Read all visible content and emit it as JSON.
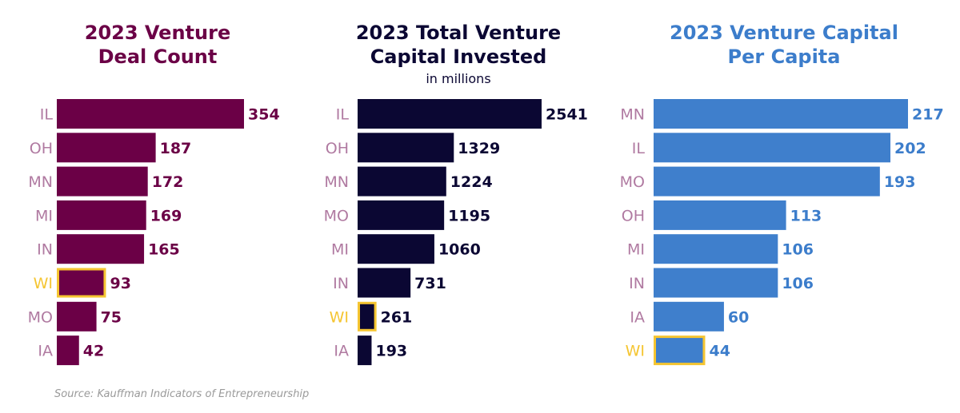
{
  "chart_data": [
    {
      "type": "bar",
      "orientation": "horizontal",
      "title_lines": [
        "2023 Venture",
        "Deal Count"
      ],
      "subtitle": "",
      "categories": [
        "IL",
        "OH",
        "MN",
        "MI",
        "IN",
        "WI",
        "MO",
        "IA"
      ],
      "values": [
        354,
        187,
        172,
        169,
        165,
        93,
        75,
        42
      ],
      "highlight": "WI",
      "xlim": [
        0,
        354
      ],
      "colors": {
        "title": "#6b0046",
        "bar": "#6b0046",
        "value": "#6b0046",
        "category": "#b07aa1",
        "highlight": "#f5c531"
      },
      "grid": false
    },
    {
      "type": "bar",
      "orientation": "horizontal",
      "title_lines": [
        "2023 Total Venture",
        "Capital Invested"
      ],
      "subtitle": "in millions",
      "categories": [
        "IL",
        "OH",
        "MN",
        "MO",
        "MI",
        "IN",
        "WI",
        "IA"
      ],
      "values": [
        2541,
        1329,
        1224,
        1195,
        1060,
        731,
        261,
        193
      ],
      "highlight": "WI",
      "xlim": [
        0,
        2541
      ],
      "colors": {
        "title": "#0b0733",
        "bar": "#0b0733",
        "value": "#0b0733",
        "category": "#b07aa1",
        "highlight": "#f5c531"
      },
      "grid": false
    },
    {
      "type": "bar",
      "orientation": "horizontal",
      "title_lines": [
        "2023 Venture Capital",
        "Per Capita"
      ],
      "subtitle": "",
      "categories": [
        "MN",
        "IL",
        "MO",
        "OH",
        "MI",
        "IN",
        "IA",
        "WI"
      ],
      "values": [
        217,
        202,
        193,
        113,
        106,
        106,
        60,
        44
      ],
      "highlight": "WI",
      "xlim": [
        0,
        217
      ],
      "colors": {
        "title": "#3c7dcb",
        "bar": "#3f7fcc",
        "value": "#3c7dcb",
        "category": "#b07aa1",
        "highlight": "#f5c531"
      },
      "grid": false
    }
  ],
  "source": "Source: Kauffman Indicators of Entrepreneurship"
}
